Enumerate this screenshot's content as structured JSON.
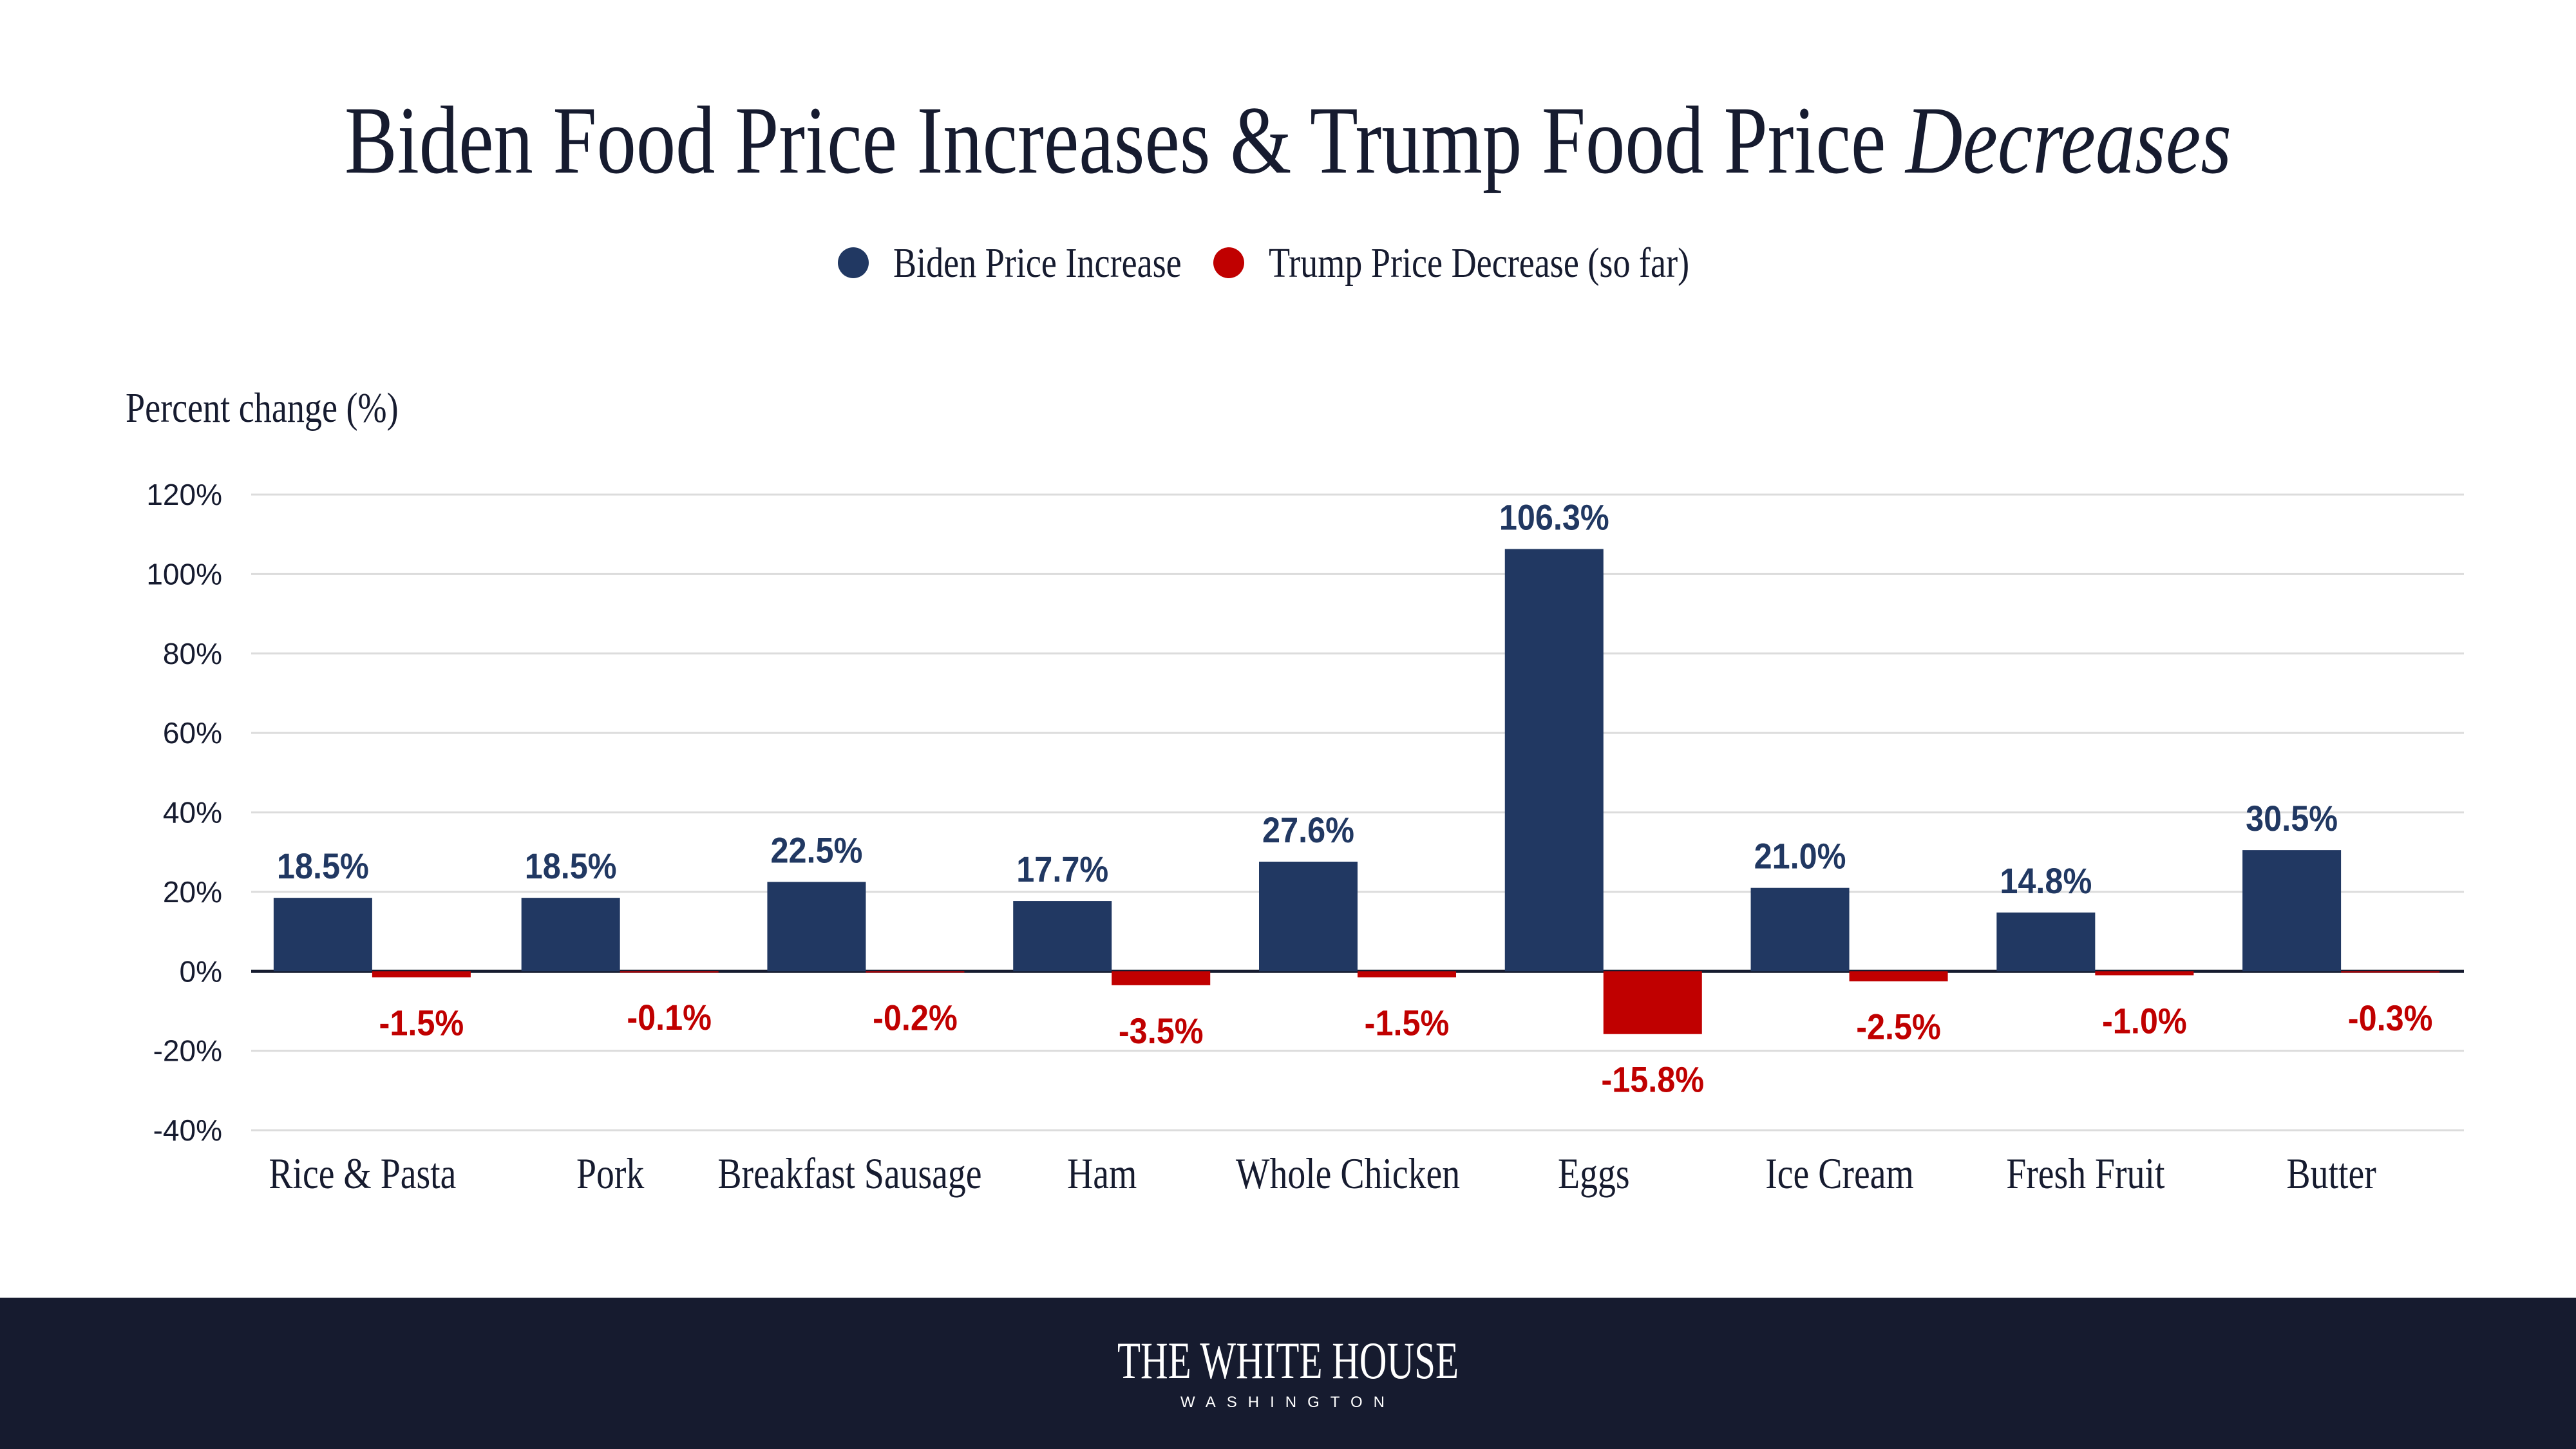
{
  "chart_data": {
    "type": "bar",
    "title": "Biden Food Price Increases & Trump Food Price",
    "title_italic": "Decreases",
    "ylabel": "Percent change (%)",
    "xlabel": "",
    "ylim": [
      -40,
      120
    ],
    "yticks": [
      120,
      100,
      80,
      60,
      40,
      20,
      0,
      -20,
      -40
    ],
    "ytick_labels": [
      "120%",
      "100%",
      "80%",
      "60%",
      "40%",
      "20%",
      "0%",
      "-20%",
      "-40%"
    ],
    "grid": true,
    "legend_placement": "top-center",
    "categories": [
      "Rice & Pasta",
      "Pork",
      "Breakfast Sausage",
      "Ham",
      "Whole Chicken",
      "Eggs",
      "Ice Cream",
      "Fresh Fruit",
      "Butter"
    ],
    "series": [
      {
        "name": "Biden Price Increase",
        "color": "#213862",
        "values": [
          18.5,
          18.5,
          22.5,
          17.7,
          27.6,
          106.3,
          21.0,
          14.8,
          30.5
        ],
        "labels": [
          "18.5%",
          "18.5%",
          "22.5%",
          "17.7%",
          "27.6%",
          "106.3%",
          "21.0%",
          "14.8%",
          "30.5%"
        ]
      },
      {
        "name": "Trump Price Decrease (so far)",
        "color": "#c00000",
        "values": [
          -1.5,
          -0.1,
          -0.2,
          -3.5,
          -1.5,
          -15.8,
          -2.5,
          -1.0,
          -0.3
        ],
        "labels": [
          "-1.5%",
          "-0.1%",
          "-0.2%",
          "-3.5%",
          "-1.5%",
          "-15.8%",
          "-2.5%",
          "-1.0%",
          "-0.3%"
        ]
      }
    ]
  },
  "footer": {
    "logo_text": "THE WHITE HOUSE",
    "logo_subtext": "WASHINGTON",
    "background": "#161b2f"
  }
}
